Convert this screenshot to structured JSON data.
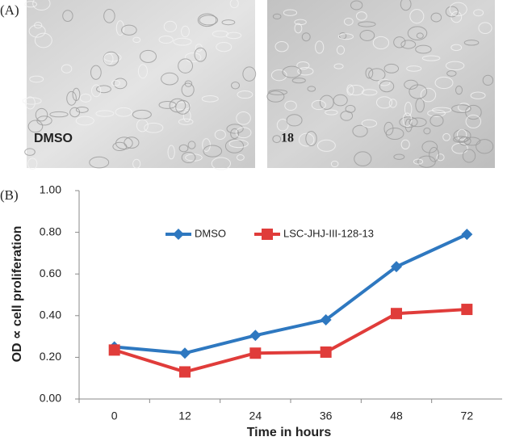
{
  "panel_a": {
    "label": "(A)",
    "images": [
      {
        "caption": "DMSO"
      },
      {
        "caption": "18"
      }
    ]
  },
  "panel_b_label": "(B)",
  "chart_data": {
    "type": "line",
    "y_axis_label": "OD ∝ cell proliferation",
    "x_axis_label": "Time in hours",
    "categories": [
      "0",
      "12",
      "24",
      "36",
      "48",
      "72"
    ],
    "series": [
      {
        "name": "DMSO",
        "color": "#2e78c0",
        "marker": "diamond",
        "values": [
          0.25,
          0.22,
          0.305,
          0.38,
          0.635,
          0.79
        ]
      },
      {
        "name": "LSC-JHJ-III-128-13",
        "color": "#e03c3a",
        "marker": "square",
        "values": [
          0.235,
          0.13,
          0.22,
          0.225,
          0.41,
          0.43
        ]
      }
    ],
    "ylim": [
      0,
      1
    ],
    "yticks": [
      {
        "value": 0,
        "label": "0.00"
      },
      {
        "value": 0.2,
        "label": "0.20"
      },
      {
        "value": 0.4,
        "label": "0.40"
      },
      {
        "value": 0.6,
        "label": "0.60"
      },
      {
        "value": 0.8,
        "label": "0.80"
      },
      {
        "value": 1,
        "label": "1.00"
      }
    ],
    "grid": false,
    "legend": "top"
  }
}
